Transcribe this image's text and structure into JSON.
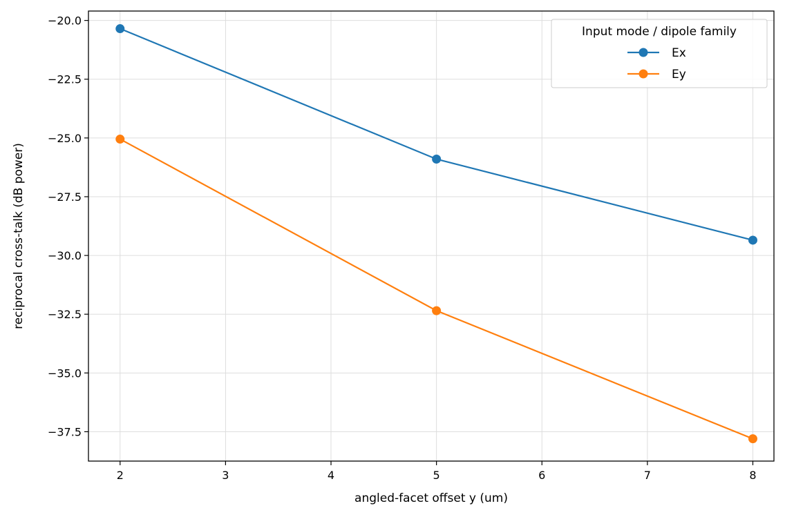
{
  "chart_data": {
    "type": "line",
    "title": "",
    "xlabel": "angled-facet offset y (um)",
    "ylabel": "reciprocal cross-talk (dB power)",
    "xlim": [
      1.7,
      8.2
    ],
    "ylim": [
      -38.75,
      -19.6
    ],
    "xticks": [
      2,
      3,
      4,
      5,
      6,
      7,
      8
    ],
    "xtick_labels": [
      "2",
      "3",
      "4",
      "5",
      "6",
      "7",
      "8"
    ],
    "yticks": [
      -20.0,
      -22.5,
      -25.0,
      -27.5,
      -30.0,
      -32.5,
      -35.0,
      -37.5
    ],
    "ytick_labels": [
      "−20.0",
      "−22.5",
      "−25.0",
      "−27.5",
      "−30.0",
      "−32.5",
      "−35.0",
      "−37.5"
    ],
    "grid": true,
    "legend": {
      "title": "Input mode / dipole family",
      "placement": "top-right"
    },
    "series": [
      {
        "name": "Ex",
        "color": "#1f77b4",
        "x": [
          2,
          5,
          8
        ],
        "y": [
          -20.35,
          -25.9,
          -29.35
        ]
      },
      {
        "name": "Ey",
        "color": "#ff7f0e",
        "x": [
          2,
          5,
          8
        ],
        "y": [
          -25.05,
          -32.35,
          -37.8
        ]
      }
    ]
  }
}
